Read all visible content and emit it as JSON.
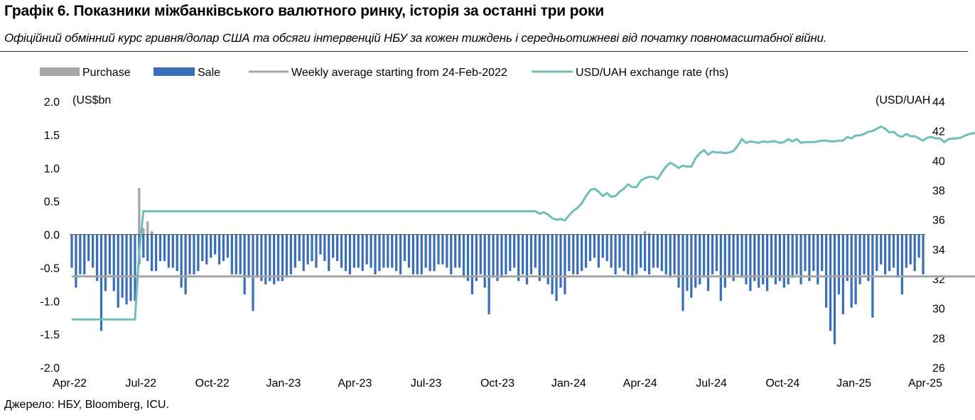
{
  "header": {
    "title": "Графік 6. Показники міжбанківського валютного ринку, історія за останні три роки",
    "subtitle": "Офіційний обмінний курс гривня/долар США та обсяги інтервенцій НБУ за кожен тиждень і середньотижневі від початку повномасштабної війни."
  },
  "footer": {
    "source": "Джерело: НБУ, Bloomberg, ICU."
  },
  "chart_data": {
    "type": "bar",
    "legend_position": "top",
    "left_axis_unit": "(US$bn",
    "right_axis_unit": "(USD/UAH",
    "ylim": [
      -2.0,
      2.0
    ],
    "yticks": [
      "2.0",
      "1.5",
      "1.0",
      "0.5",
      "0.0",
      "-0.5",
      "-1.0",
      "-1.5",
      "-2.0"
    ],
    "y2lim": [
      26,
      44
    ],
    "y2ticks": [
      "44",
      "42",
      "40",
      "38",
      "36",
      "34",
      "32",
      "30",
      "28",
      "26"
    ],
    "xtick_labels": [
      "Apr-22",
      "Jul-22",
      "Oct-22",
      "Jan-23",
      "Apr-23",
      "Jul-23",
      "Oct-23",
      "Jan-24",
      "Apr-24",
      "Jul-24",
      "Oct-24",
      "Jan-25",
      "Apr-25"
    ],
    "colors": {
      "purchase": "#a6a6a6",
      "sale": "#3a6fb7",
      "average": "#a6a6a6",
      "rate": "#6fbfb9"
    },
    "series": [
      {
        "name": "Purchase",
        "kind": "bar",
        "values": [
          0,
          0,
          0,
          0,
          0,
          0,
          0,
          0,
          0,
          0,
          0,
          0,
          0,
          0,
          0,
          0,
          0.7,
          0.1,
          0.2,
          0.05,
          0,
          0,
          0,
          0,
          0,
          0,
          0,
          0,
          0,
          0,
          0,
          0,
          0,
          0,
          0,
          0,
          0,
          0,
          0,
          0,
          0,
          0,
          0,
          0,
          0,
          0,
          0,
          0,
          0,
          0,
          0,
          0,
          0,
          0,
          0,
          0,
          0,
          0,
          0,
          0,
          0,
          0,
          0,
          0,
          0,
          0,
          0,
          0,
          0,
          0,
          0,
          0,
          0,
          0,
          0,
          0,
          0,
          0,
          0,
          0,
          0,
          0,
          0,
          0,
          0,
          0,
          0,
          0,
          0,
          0,
          0,
          0,
          0,
          0,
          0,
          0,
          0,
          0,
          0,
          0,
          0,
          0,
          0,
          0,
          0,
          0,
          0,
          0,
          0,
          0,
          0,
          0,
          0,
          0,
          0,
          0,
          0,
          0,
          0,
          0,
          0,
          0,
          0,
          0,
          0,
          0,
          0,
          0,
          0,
          0,
          0,
          0,
          0,
          0,
          0,
          0,
          0.05,
          0.02,
          0,
          0,
          0,
          0,
          0,
          0,
          0,
          0,
          0,
          0,
          0,
          0,
          0,
          0,
          0,
          0,
          0,
          0,
          0,
          0,
          0,
          0,
          0,
          0,
          0,
          0,
          0,
          0,
          0,
          0,
          0,
          0,
          0,
          0,
          0,
          0,
          0,
          0,
          0,
          0,
          0,
          0,
          0,
          0,
          0,
          0,
          0,
          0,
          0,
          0,
          0,
          0,
          0,
          0,
          0,
          0,
          0,
          0,
          0,
          0,
          0,
          0,
          0,
          0,
          0,
          0,
          0,
          0,
          0,
          0,
          0,
          0,
          0,
          0,
          0,
          0,
          0,
          0,
          0,
          0,
          0,
          0,
          0,
          0,
          0,
          0,
          0,
          0,
          0,
          0,
          0,
          0
        ]
      },
      {
        "name": "Sale",
        "kind": "bar",
        "values": [
          -0.5,
          -0.8,
          -0.6,
          -0.6,
          -0.4,
          -0.5,
          -0.7,
          -1.45,
          -0.85,
          -0.6,
          -0.85,
          -1.1,
          -0.95,
          -1.05,
          -1.0,
          -1.0,
          -0.45,
          -0.35,
          -0.4,
          -0.55,
          -0.55,
          -0.4,
          -0.4,
          -0.5,
          -0.5,
          -0.55,
          -0.8,
          -0.9,
          -0.6,
          -0.6,
          -0.55,
          -0.4,
          -0.45,
          -0.35,
          -0.3,
          -0.45,
          -0.4,
          -0.35,
          -0.6,
          -0.6,
          -0.6,
          -0.9,
          -0.65,
          -1.15,
          -0.65,
          -0.7,
          -0.75,
          -0.7,
          -0.75,
          -0.7,
          -0.7,
          -0.65,
          -0.6,
          -0.5,
          -0.4,
          -0.55,
          -0.45,
          -0.4,
          -0.5,
          -0.3,
          -0.4,
          -0.55,
          -0.35,
          -0.4,
          -0.5,
          -0.55,
          -0.6,
          -0.5,
          -0.5,
          -0.55,
          -0.45,
          -0.5,
          -0.6,
          -0.55,
          -0.5,
          -0.5,
          -0.5,
          -0.55,
          -0.6,
          -0.4,
          -0.5,
          -0.6,
          -0.6,
          -0.6,
          -0.5,
          -0.55,
          -0.55,
          -0.45,
          -0.45,
          -0.5,
          -0.6,
          -0.5,
          -0.5,
          -0.65,
          -0.7,
          -0.9,
          -0.7,
          -0.6,
          -0.8,
          -1.2,
          -0.65,
          -0.7,
          -0.65,
          -0.6,
          -0.55,
          -0.5,
          -0.7,
          -0.6,
          -0.75,
          -0.6,
          -0.5,
          -0.7,
          -0.65,
          -0.75,
          -0.9,
          -1.0,
          -0.8,
          -0.9,
          -0.55,
          -0.6,
          -0.6,
          -0.55,
          -0.5,
          -0.4,
          -0.35,
          -0.5,
          -0.35,
          -0.4,
          -0.5,
          -0.6,
          -0.5,
          -0.55,
          -0.6,
          -0.65,
          -0.6,
          -0.5,
          -0.55,
          -0.6,
          -0.5,
          -0.5,
          -0.55,
          -0.6,
          -0.65,
          -0.6,
          -0.8,
          -1.15,
          -0.85,
          -0.95,
          -0.8,
          -0.75,
          -0.65,
          -0.85,
          -0.6,
          -0.55,
          -1.0,
          -0.8,
          -0.65,
          -0.7,
          -0.6,
          -0.65,
          -0.75,
          -0.85,
          -0.7,
          -0.8,
          -0.75,
          -0.85,
          -0.65,
          -0.75,
          -0.7,
          -0.8,
          -0.75,
          -0.65,
          -0.6,
          -0.75,
          -0.55,
          -0.7,
          -0.55,
          -0.75,
          -0.55,
          -1.1,
          -1.45,
          -1.65,
          -0.9,
          -1.2,
          -0.7,
          -1.1,
          -1.05,
          -0.75,
          -0.6,
          -0.7,
          -1.25,
          -0.55,
          -0.45,
          -0.6,
          -0.55,
          -0.5,
          -0.65,
          -0.9,
          -0.5,
          -0.45,
          -0.55,
          -0.35,
          -0.6
        ]
      },
      {
        "name": "Weekly average starting from 24-Feb-2022",
        "kind": "line",
        "y_axis": "left",
        "x_index": [
          0,
          16,
          17,
          215
        ],
        "values": [
          -0.63,
          -0.63,
          -0.63,
          -0.63
        ]
      },
      {
        "name": "USD/UAH exchange rate (rhs)",
        "kind": "line",
        "y_axis": "right",
        "x_index": [
          0,
          15,
          16,
          17,
          18,
          20,
          70,
          110,
          111,
          112,
          113,
          114,
          115,
          116,
          117,
          118,
          119,
          120,
          121,
          122,
          123,
          124,
          125,
          126,
          127,
          128,
          129,
          130,
          131,
          132,
          133,
          134,
          135,
          136,
          137,
          138,
          139,
          140,
          141,
          142,
          143,
          144,
          145,
          146,
          147,
          148,
          149,
          150,
          151,
          152,
          153,
          154,
          155,
          156,
          157,
          158,
          159,
          160,
          161,
          162,
          163,
          164,
          165,
          166,
          167,
          168,
          169,
          170,
          171,
          172,
          173,
          174,
          175,
          176,
          177,
          178,
          179,
          180,
          181,
          182,
          183,
          184,
          185,
          186,
          187,
          188,
          189,
          190,
          191,
          192,
          193,
          194,
          195,
          196,
          197,
          198,
          199,
          200,
          201,
          202,
          203,
          204,
          205,
          206,
          207,
          208,
          209,
          210,
          211,
          212,
          213,
          214,
          215
        ],
        "values": [
          29.25,
          29.25,
          33.8,
          36.57,
          36.57,
          36.57,
          36.57,
          36.57,
          36.4,
          36.5,
          36.35,
          36.1,
          36.0,
          36.05,
          35.95,
          36.3,
          36.6,
          36.8,
          37.1,
          37.6,
          38.0,
          38.1,
          37.9,
          37.6,
          37.8,
          37.55,
          37.6,
          37.9,
          38.1,
          38.4,
          38.2,
          38.2,
          38.65,
          38.8,
          38.9,
          38.9,
          38.75,
          39.2,
          39.6,
          39.85,
          39.7,
          39.5,
          39.65,
          39.6,
          39.6,
          40.15,
          40.5,
          40.7,
          40.4,
          40.6,
          40.55,
          40.55,
          40.5,
          40.55,
          40.65,
          41.0,
          41.45,
          41.2,
          41.3,
          41.25,
          41.2,
          41.3,
          41.25,
          41.3,
          41.3,
          41.2,
          41.25,
          41.45,
          41.3,
          41.45,
          41.2,
          41.25,
          41.25,
          41.25,
          41.3,
          41.35,
          41.35,
          41.3,
          41.3,
          41.35,
          41.35,
          41.6,
          41.5,
          41.7,
          41.7,
          41.8,
          41.95,
          42.0,
          42.15,
          42.3,
          42.15,
          41.9,
          41.95,
          41.7,
          41.6,
          41.8,
          41.65,
          41.65,
          41.5,
          41.35,
          41.55,
          41.6,
          41.5,
          41.5,
          41.25,
          41.45,
          41.5,
          41.5,
          41.55,
          41.7,
          41.8,
          41.85,
          41.85
        ]
      }
    ]
  }
}
